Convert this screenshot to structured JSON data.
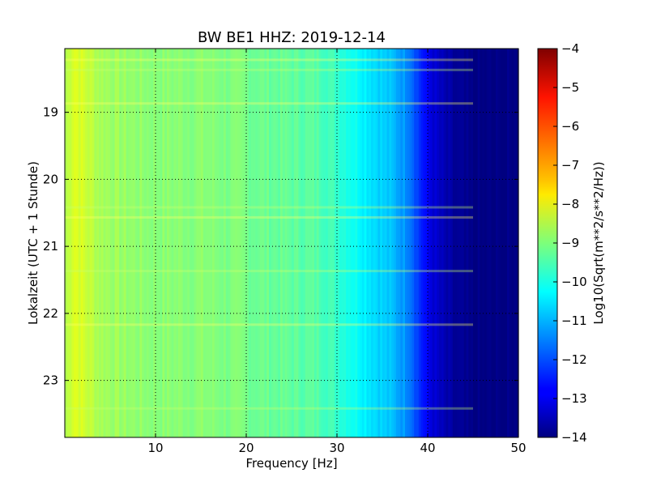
{
  "chart_data": {
    "type": "heatmap",
    "title": "BW BE1 HHZ: 2019-12-14",
    "xlabel": "Frequency [Hz]",
    "ylabel": "Lokalzeit (UTC + 1 Stunde)",
    "xlim": [
      0,
      50
    ],
    "ylim": [
      18.05,
      23.85
    ],
    "x_ticks": [
      10,
      20,
      30,
      40,
      50
    ],
    "y_ticks": [
      19,
      20,
      21,
      22,
      23
    ],
    "y_axis_inverted": true,
    "grid": true,
    "colormap": "jet",
    "colorbar": {
      "label": "Log10(Sqrt(m**2/s**2/Hz))",
      "range": [
        -14,
        -4
      ],
      "ticks": [
        -4,
        -5,
        -6,
        -7,
        -8,
        -9,
        -10,
        -11,
        -12,
        -13,
        -14
      ]
    },
    "frequency_profile": {
      "frequency_hz": [
        0,
        1,
        2,
        4,
        7,
        10,
        15,
        20,
        25,
        28,
        30,
        32,
        34,
        36,
        38,
        39,
        40,
        41,
        42,
        43,
        44,
        45,
        46,
        50
      ],
      "log10_amplitude": [
        -8.6,
        -8.0,
        -8.2,
        -8.6,
        -8.8,
        -8.9,
        -8.9,
        -9.1,
        -9.3,
        -9.4,
        -9.7,
        -10.1,
        -10.5,
        -10.9,
        -11.4,
        -12.2,
        -12.9,
        -13.3,
        -13.6,
        -13.8,
        -13.9,
        -14.0,
        -14.0,
        -14.0
      ]
    }
  }
}
